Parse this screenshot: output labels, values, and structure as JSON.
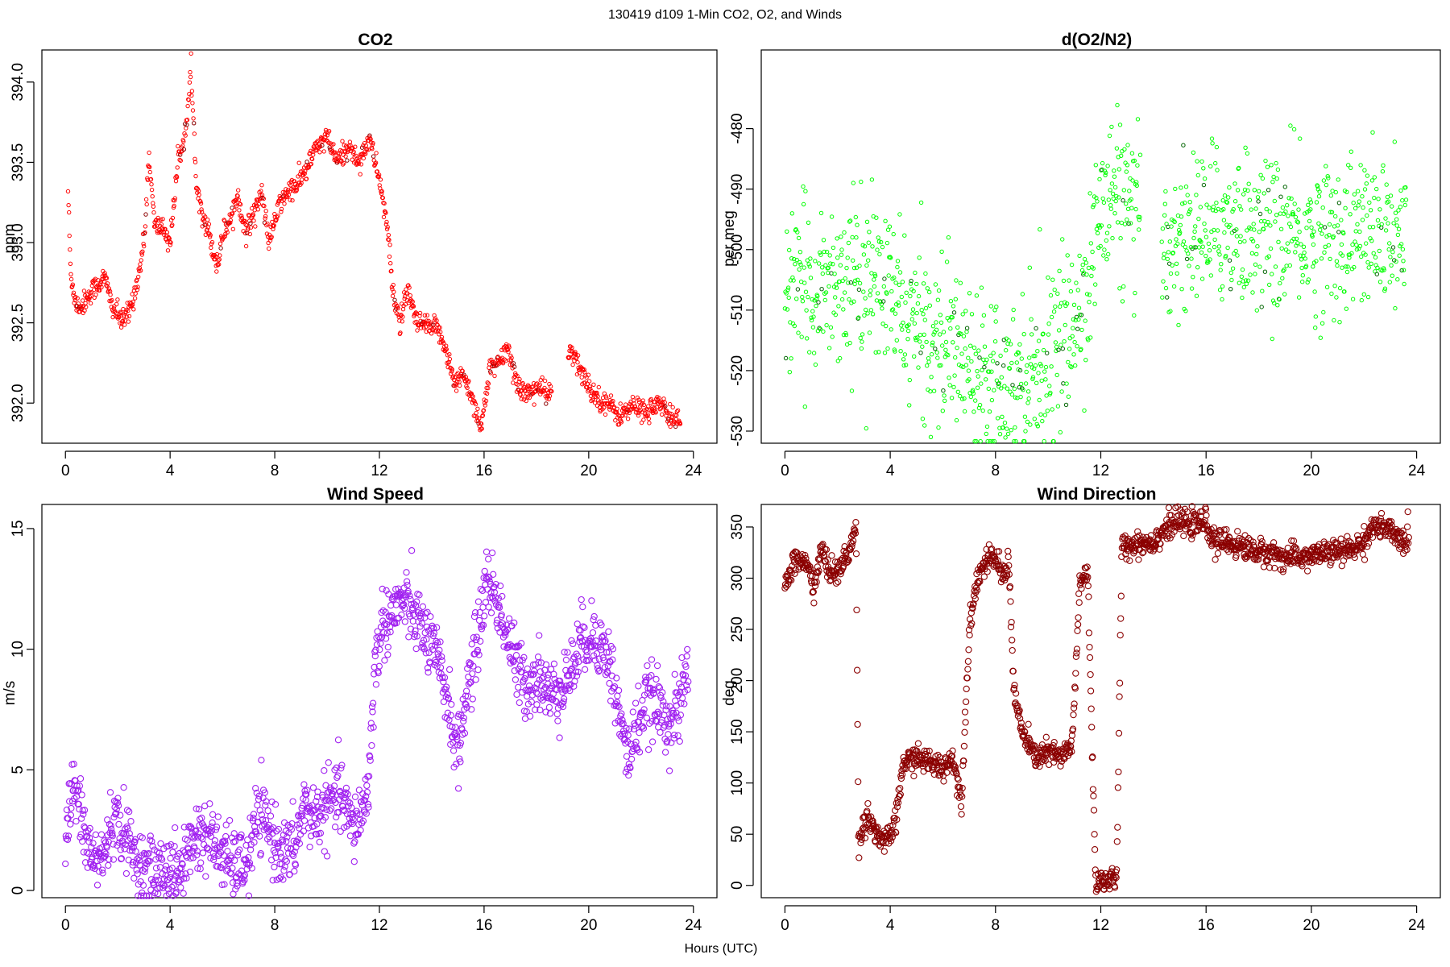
{
  "figure": {
    "title": "130419   d109   1-Min CO2, O2, and Winds",
    "xlabel": "Hours (UTC)"
  },
  "chart_data": [
    {
      "type": "scatter",
      "title": "CO2",
      "ylabel": "ppm",
      "color": "#ff0000",
      "marker": "small-open-circle",
      "xlim": [
        -0.9,
        24.9
      ],
      "ylim": [
        391.75,
        394.2
      ],
      "xticks": [
        0,
        4,
        8,
        12,
        16,
        20,
        24
      ],
      "yticks": [
        392.0,
        392.5,
        393.0,
        393.5,
        394.0
      ],
      "ytick_labels": [
        "392.0",
        "392.5",
        "393.0",
        "393.5",
        "394.0"
      ],
      "keypoints": [
        [
          0.1,
          393.33
        ],
        [
          0.2,
          392.8
        ],
        [
          0.4,
          392.62
        ],
        [
          0.6,
          392.6
        ],
        [
          1.0,
          392.7
        ],
        [
          1.5,
          392.78
        ],
        [
          1.8,
          392.6
        ],
        [
          2.2,
          392.5
        ],
        [
          2.5,
          392.6
        ],
        [
          2.8,
          392.8
        ],
        [
          3.0,
          393.0
        ],
        [
          3.2,
          393.55
        ],
        [
          3.4,
          393.1
        ],
        [
          3.7,
          393.1
        ],
        [
          4.0,
          393.0
        ],
        [
          4.3,
          393.5
        ],
        [
          4.6,
          393.7
        ],
        [
          4.8,
          394.05
        ],
        [
          5.0,
          393.4
        ],
        [
          5.2,
          393.2
        ],
        [
          5.5,
          393.05
        ],
        [
          5.8,
          392.85
        ],
        [
          6.0,
          393.05
        ],
        [
          6.3,
          393.15
        ],
        [
          6.6,
          393.3
        ],
        [
          6.9,
          393.05
        ],
        [
          7.2,
          393.2
        ],
        [
          7.5,
          393.3
        ],
        [
          7.8,
          393.0
        ],
        [
          8.1,
          393.2
        ],
        [
          8.4,
          393.3
        ],
        [
          8.8,
          393.35
        ],
        [
          9.2,
          393.45
        ],
        [
          9.6,
          393.6
        ],
        [
          10.0,
          393.65
        ],
        [
          10.4,
          393.5
        ],
        [
          10.8,
          393.6
        ],
        [
          11.2,
          393.5
        ],
        [
          11.6,
          393.65
        ],
        [
          12.0,
          393.4
        ],
        [
          12.3,
          393.1
        ],
        [
          12.5,
          392.7
        ],
        [
          12.8,
          392.5
        ],
        [
          13.1,
          392.7
        ],
        [
          13.4,
          392.5
        ],
        [
          14.3,
          392.45
        ],
        [
          14.6,
          392.3
        ],
        [
          14.9,
          392.1
        ],
        [
          15.2,
          392.2
        ],
        [
          15.6,
          392.0
        ],
        [
          15.9,
          391.85
        ],
        [
          16.2,
          392.2
        ],
        [
          16.6,
          392.25
        ],
        [
          16.9,
          392.35
        ],
        [
          17.2,
          392.15
        ],
        [
          17.6,
          392.05
        ],
        [
          18.0,
          392.1
        ],
        [
          18.5,
          392.05
        ],
        [
          19.3,
          392.32
        ],
        [
          19.7,
          392.2
        ],
        [
          20.2,
          392.05
        ],
        [
          20.7,
          392.0
        ],
        [
          21.2,
          391.92
        ],
        [
          21.7,
          391.98
        ],
        [
          22.2,
          391.95
        ],
        [
          22.7,
          392.0
        ],
        [
          23.0,
          391.92
        ],
        [
          23.5,
          391.9
        ]
      ],
      "scatter_sd": 0.035,
      "gaps": [
        [
          18.6,
          19.2
        ]
      ]
    },
    {
      "type": "scatter",
      "title": "d(O2/N2)",
      "ylabel": "per meg",
      "color": "#00ff00",
      "marker": "small-open-circle",
      "xlim": [
        -0.9,
        24.9
      ],
      "ylim": [
        -532,
        -467
      ],
      "xticks": [
        0,
        4,
        8,
        12,
        16,
        20,
        24
      ],
      "yticks": [
        -480,
        -490,
        -500,
        -510,
        -520,
        -530
      ],
      "ytick_labels": [
        "-480",
        "-490",
        "-500",
        "-510",
        "-520",
        "-530"
      ],
      "keypoints": [
        [
          0.0,
          -508
        ],
        [
          1.0,
          -506
        ],
        [
          2.0,
          -505
        ],
        [
          3.0,
          -505
        ],
        [
          3.8,
          -506
        ],
        [
          4.2,
          -509
        ],
        [
          5.0,
          -513
        ],
        [
          6.0,
          -515
        ],
        [
          7.0,
          -518
        ],
        [
          8.0,
          -520
        ],
        [
          8.6,
          -521
        ],
        [
          9.2,
          -520
        ],
        [
          10.0,
          -518
        ],
        [
          11.0,
          -513
        ],
        [
          11.5,
          -505
        ],
        [
          12.0,
          -494
        ],
        [
          12.5,
          -490
        ],
        [
          13.0,
          -493
        ],
        [
          13.4,
          -497
        ],
        [
          14.4,
          -499
        ],
        [
          15.0,
          -498
        ],
        [
          16.0,
          -496
        ],
        [
          17.0,
          -496
        ],
        [
          18.0,
          -497
        ],
        [
          19.0,
          -498
        ],
        [
          20.0,
          -498
        ],
        [
          21.0,
          -498
        ],
        [
          22.0,
          -497
        ],
        [
          23.0,
          -498
        ],
        [
          23.6,
          -500
        ]
      ],
      "scatter_sd": 6.5,
      "gaps": [
        [
          13.5,
          14.3
        ]
      ]
    },
    {
      "type": "scatter",
      "title": "Wind Speed",
      "ylabel": "m/s",
      "color": "#a020f0",
      "marker": "open-circle",
      "xlim": [
        -0.9,
        24.9
      ],
      "ylim": [
        -0.3,
        16.0
      ],
      "xticks": [
        0,
        4,
        8,
        12,
        16,
        20,
        24
      ],
      "yticks": [
        0,
        5,
        10,
        15
      ],
      "ytick_labels": [
        "0",
        "5",
        "10",
        "15"
      ],
      "keypoints": [
        [
          0.0,
          2.0
        ],
        [
          0.3,
          4.5
        ],
        [
          0.5,
          3.5
        ],
        [
          0.8,
          2.0
        ],
        [
          1.1,
          1.2
        ],
        [
          1.5,
          1.5
        ],
        [
          1.8,
          3.0
        ],
        [
          2.2,
          2.5
        ],
        [
          2.6,
          1.5
        ],
        [
          2.9,
          1.0
        ],
        [
          3.2,
          0.8
        ],
        [
          3.5,
          0.7
        ],
        [
          4.0,
          1.0
        ],
        [
          4.3,
          0.5
        ],
        [
          4.6,
          1.5
        ],
        [
          5.0,
          2.3
        ],
        [
          5.4,
          2.3
        ],
        [
          5.8,
          1.8
        ],
        [
          6.2,
          1.2
        ],
        [
          6.6,
          1.0
        ],
        [
          7.0,
          1.2
        ],
        [
          7.3,
          3.0
        ],
        [
          7.7,
          2.8
        ],
        [
          8.0,
          2.0
        ],
        [
          8.4,
          1.5
        ],
        [
          8.8,
          1.8
        ],
        [
          9.1,
          3.5
        ],
        [
          9.5,
          3.0
        ],
        [
          10.0,
          3.5
        ],
        [
          10.5,
          4.0
        ],
        [
          11.0,
          2.5
        ],
        [
          11.4,
          3.5
        ],
        [
          11.6,
          4.5
        ],
        [
          11.8,
          9.0
        ],
        [
          12.1,
          11.0
        ],
        [
          12.5,
          11.5
        ],
        [
          12.9,
          12.0
        ],
        [
          13.3,
          11.5
        ],
        [
          13.8,
          10.5
        ],
        [
          14.2,
          9.5
        ],
        [
          14.6,
          8.0
        ],
        [
          15.0,
          5.5
        ],
        [
          15.3,
          8.0
        ],
        [
          15.7,
          10.0
        ],
        [
          16.1,
          13.0
        ],
        [
          16.5,
          12.0
        ],
        [
          16.9,
          10.5
        ],
        [
          17.3,
          9.0
        ],
        [
          17.7,
          8.5
        ],
        [
          18.1,
          9.0
        ],
        [
          18.5,
          8.0
        ],
        [
          18.9,
          8.5
        ],
        [
          19.3,
          9.0
        ],
        [
          19.8,
          10.5
        ],
        [
          20.3,
          10.5
        ],
        [
          20.8,
          9.5
        ],
        [
          21.2,
          7.0
        ],
        [
          21.5,
          5.5
        ],
        [
          21.9,
          7.0
        ],
        [
          22.3,
          8.0
        ],
        [
          22.7,
          7.5
        ],
        [
          23.1,
          7.0
        ],
        [
          23.5,
          7.5
        ],
        [
          23.8,
          9.5
        ]
      ],
      "scatter_sd": 0.7,
      "gaps": []
    },
    {
      "type": "scatter",
      "title": "Wind Direction",
      "ylabel": "deg",
      "color": "#8b0000",
      "marker": "open-circle",
      "xlim": [
        -0.9,
        24.9
      ],
      "ylim": [
        -12,
        372
      ],
      "xticks": [
        0,
        4,
        8,
        12,
        16,
        20,
        24
      ],
      "yticks": [
        0,
        50,
        100,
        150,
        200,
        250,
        300,
        350
      ],
      "ytick_labels": [
        "0",
        "50",
        "100",
        "150",
        "200",
        "250",
        "300",
        "350"
      ],
      "keypoints": [
        [
          0.0,
          290
        ],
        [
          0.3,
          315
        ],
        [
          0.6,
          318
        ],
        [
          0.9,
          310
        ],
        [
          1.1,
          290
        ],
        [
          1.4,
          330
        ],
        [
          1.6,
          310
        ],
        [
          2.0,
          305
        ],
        [
          2.5,
          330
        ],
        [
          2.7,
          350
        ],
        [
          2.8,
          40
        ],
        [
          3.1,
          70
        ],
        [
          3.4,
          55
        ],
        [
          3.8,
          40
        ],
        [
          4.2,
          60
        ],
        [
          4.5,
          120
        ],
        [
          5.0,
          125
        ],
        [
          5.5,
          120
        ],
        [
          6.0,
          115
        ],
        [
          6.4,
          125
        ],
        [
          6.7,
          80
        ],
        [
          7.0,
          250
        ],
        [
          7.3,
          300
        ],
        [
          7.6,
          315
        ],
        [
          8.0,
          320
        ],
        [
          8.3,
          300
        ],
        [
          8.5,
          320
        ],
        [
          8.7,
          190
        ],
        [
          9.0,
          150
        ],
        [
          9.5,
          125
        ],
        [
          10.0,
          130
        ],
        [
          10.5,
          125
        ],
        [
          10.9,
          135
        ],
        [
          11.2,
          290
        ],
        [
          11.5,
          310
        ],
        [
          11.8,
          5
        ],
        [
          12.2,
          5
        ],
        [
          12.6,
          5
        ],
        [
          12.8,
          330
        ],
        [
          13.5,
          335
        ],
        [
          14.0,
          335
        ],
        [
          14.5,
          350
        ],
        [
          15.0,
          355
        ],
        [
          15.5,
          352
        ],
        [
          16.0,
          355
        ],
        [
          16.3,
          335
        ],
        [
          16.8,
          335
        ],
        [
          17.5,
          330
        ],
        [
          18.0,
          325
        ],
        [
          18.5,
          325
        ],
        [
          19.0,
          320
        ],
        [
          19.5,
          320
        ],
        [
          20.0,
          322
        ],
        [
          20.5,
          325
        ],
        [
          21.0,
          325
        ],
        [
          21.5,
          328
        ],
        [
          22.0,
          335
        ],
        [
          22.3,
          350
        ],
        [
          22.6,
          350
        ],
        [
          23.0,
          345
        ],
        [
          23.5,
          335
        ],
        [
          23.7,
          340
        ]
      ],
      "scatter_sd": 6,
      "gaps": []
    }
  ]
}
